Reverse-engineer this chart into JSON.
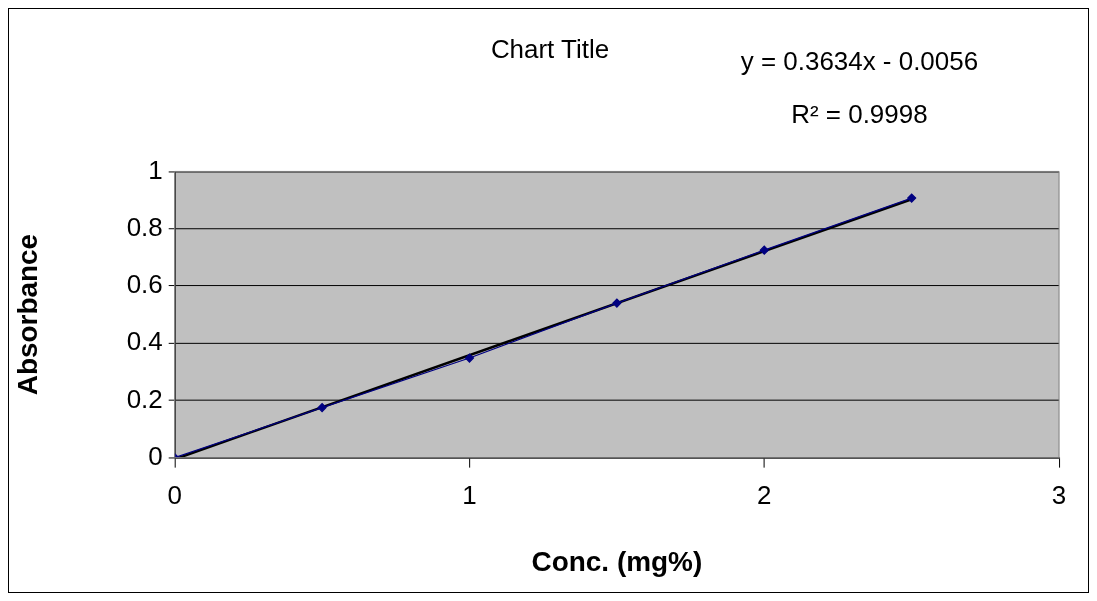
{
  "chart_data": {
    "type": "scatter",
    "title": "Chart Title",
    "xlabel": "Conc. (mg%)",
    "ylabel": "Absorbance",
    "series": [
      {
        "type": "line",
        "color": "#000080",
        "marker": "diamond",
        "x": [
          0,
          0.5,
          1,
          1.5,
          2,
          2.5
        ],
        "values": [
          0,
          0.175,
          0.348,
          0.54,
          0.725,
          0.907
        ]
      },
      {
        "type": "line",
        "color": "#000000",
        "marker": "none",
        "x": [
          0.015,
          2.5
        ],
        "values": [
          0,
          0.903
        ]
      }
    ],
    "xlim": [
      0,
      3
    ],
    "xticks": [
      0,
      1,
      2,
      3
    ],
    "ylim": [
      0,
      1
    ],
    "yticks": [
      0,
      0.2,
      0.4,
      0.6,
      0.8,
      1
    ],
    "grid": "y",
    "legend": false,
    "annotations": [
      "y = 0.3634x - 0.0056",
      "R² = 0.9998"
    ]
  }
}
